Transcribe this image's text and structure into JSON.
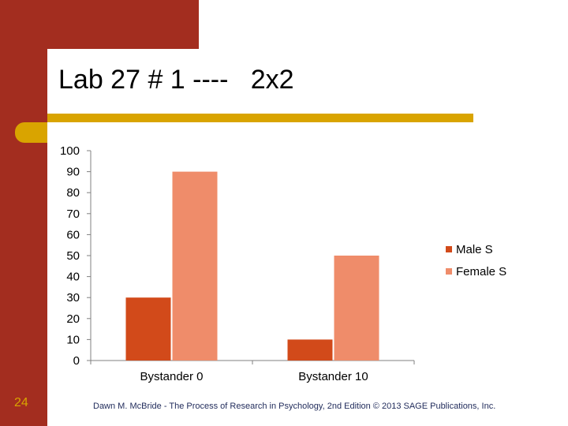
{
  "title": "Lab 27 # 1 ----   2x2",
  "page_number": "24",
  "footer": "Dawn M. McBride - The Process of Research in Psychology, 2nd Edition © 2013 SAGE Publications, Inc.",
  "colors": {
    "male": "#d24a1a",
    "female": "#ef8c6a",
    "brand": "#a32d1f",
    "accent": "#d9a400"
  },
  "chart_data": {
    "type": "bar",
    "categories": [
      "Bystander 0",
      "Bystander 10"
    ],
    "series": [
      {
        "name": "Male S",
        "values": [
          30,
          10
        ]
      },
      {
        "name": "Female S",
        "values": [
          90,
          50
        ]
      }
    ],
    "ylim": [
      0,
      100
    ],
    "yticks": [
      0,
      10,
      20,
      30,
      40,
      50,
      60,
      70,
      80,
      90,
      100
    ],
    "grid": false,
    "legend": "right"
  }
}
